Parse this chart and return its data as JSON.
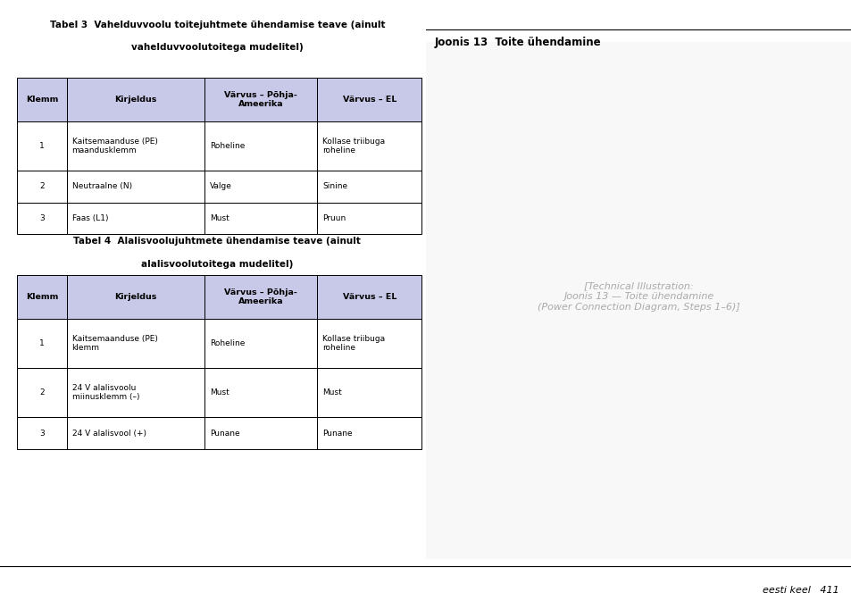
{
  "background_color": "#ffffff",
  "page_width": 9.54,
  "page_height": 6.73,
  "footer_text": "eesti keel   411",
  "table3_title_line1": "Tabel 3  Vahelduvvoolu toitejuhtmete ühendamise teave (ainult",
  "table3_title_line2": "vahelduvvoolutoitega mudelitel)",
  "table3_header": [
    "Klemm",
    "Kirjeldus",
    "Värvus – Põhja-\nAmeerika",
    "Värvus – EL"
  ],
  "table3_rows": [
    [
      "1",
      "Kaitsemaanduse (PE)\nmaandusklemm",
      "Roheline",
      "Kollase triibuga\nroheline"
    ],
    [
      "2",
      "Neutraalne (N)",
      "Valge",
      "Sinine"
    ],
    [
      "3",
      "Faas (L1)",
      "Must",
      "Pruun"
    ]
  ],
  "table4_title_line1": "Tabel 4  Alalisvoolujuhtmete ühendamise teave (ainult",
  "table4_title_line2": "alalisvoolutoitega mudelitel)",
  "table4_header": [
    "Klemm",
    "Kirjeldus",
    "Värvus – Põhja-\nAmeerika",
    "Värvus – EL"
  ],
  "table4_rows": [
    [
      "1",
      "Kaitsemaanduse (PE)\nklemm",
      "Roheline",
      "Kollase triibuga\nroheline"
    ],
    [
      "2",
      "24 V alalisvoolu\nmiinusklemm (–)",
      "Must",
      "Must"
    ],
    [
      "3",
      "24 V alalisvool (+)",
      "Punane",
      "Punane"
    ]
  ],
  "joonis_title": "Joonis 13  Toite ühendamine",
  "header_bg_color": "#c8c8e8",
  "border_color": "#000000",
  "white": "#ffffff"
}
